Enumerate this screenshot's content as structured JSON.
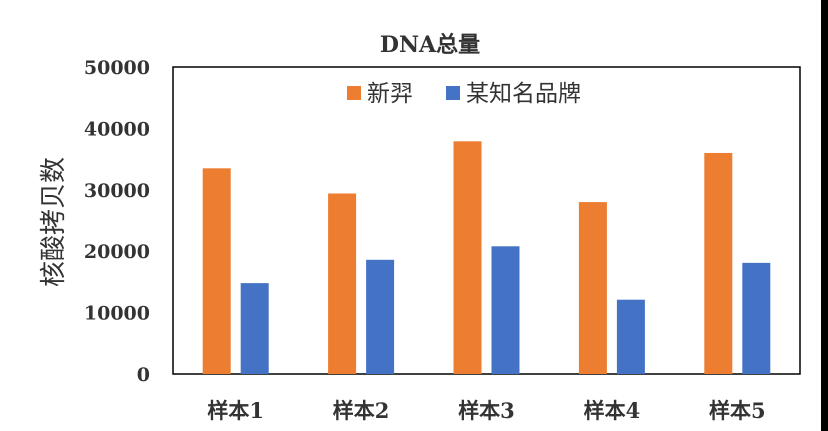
{
  "chart_data": {
    "type": "bar",
    "title": "DNA总量",
    "xlabel": "",
    "ylabel": "核酸拷贝数",
    "categories": [
      "样本1",
      "样本2",
      "样本3",
      "样本4",
      "样本5"
    ],
    "series": [
      {
        "name": "新羿",
        "values": [
          33500,
          29400,
          37900,
          28000,
          36000
        ],
        "color": "#ED7D31"
      },
      {
        "name": "某知名品牌",
        "values": [
          14800,
          18600,
          20800,
          12100,
          18100
        ],
        "color": "#4472C4"
      }
    ],
    "ylim": [
      0,
      50000
    ],
    "yticks": [
      "0",
      "10000",
      "20000",
      "30000",
      "40000",
      "50000"
    ],
    "legend": "top-center",
    "grid": false
  }
}
